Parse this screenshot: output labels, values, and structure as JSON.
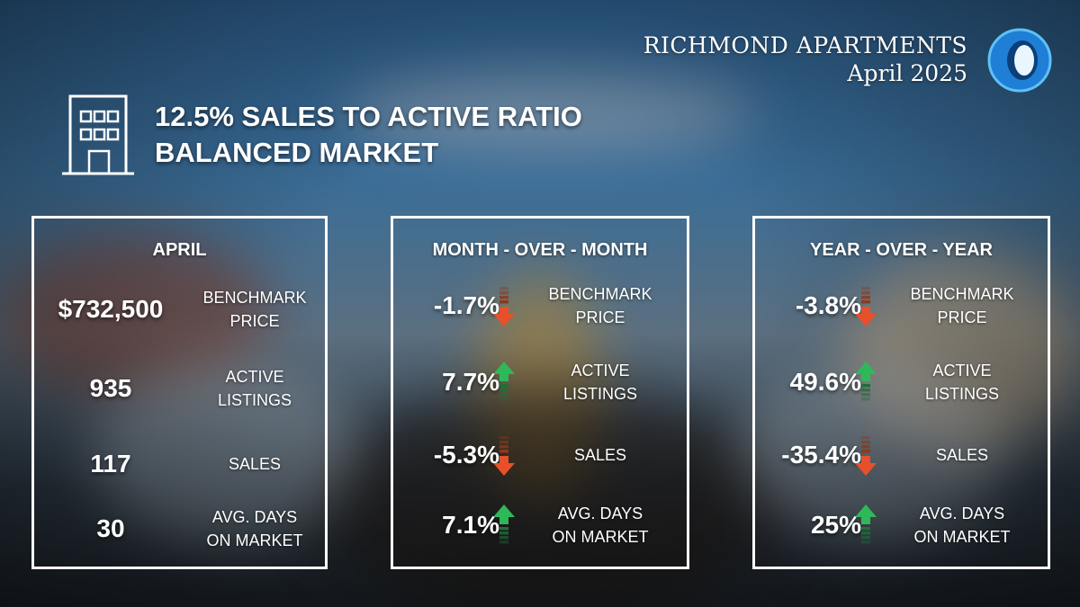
{
  "brand": {
    "title": "RICHMOND APARTMENTS",
    "date": "April 2025"
  },
  "headline": {
    "line1": "12.5% SALES TO ACTIVE RATIO",
    "line2": "BALANCED MARKET"
  },
  "colors": {
    "up": "#2fb85a",
    "down": "#e8502a",
    "border": "#ffffff"
  },
  "panels": {
    "april": {
      "title": "APRIL",
      "rows": [
        {
          "value": "$732,500",
          "label1": "BENCHMARK",
          "label2": "PRICE"
        },
        {
          "value": "935",
          "label1": "ACTIVE",
          "label2": "LISTINGS"
        },
        {
          "value": "117",
          "label1": "SALES",
          "label2": ""
        },
        {
          "value": "30",
          "label1": "AVG. DAYS",
          "label2": "ON MARKET"
        }
      ]
    },
    "mom": {
      "title": "MONTH - OVER - MONTH",
      "rows": [
        {
          "value": "-1.7%",
          "direction": "down",
          "label1": "BENCHMARK",
          "label2": "PRICE"
        },
        {
          "value": "7.7%",
          "direction": "up",
          "label1": "ACTIVE",
          "label2": "LISTINGS"
        },
        {
          "value": "-5.3%",
          "direction": "down",
          "label1": "SALES",
          "label2": ""
        },
        {
          "value": "7.1%",
          "direction": "up",
          "label1": "AVG. DAYS",
          "label2": "ON MARKET"
        }
      ]
    },
    "yoy": {
      "title": "YEAR - OVER - YEAR",
      "rows": [
        {
          "value": "-3.8%",
          "direction": "down",
          "label1": "BENCHMARK",
          "label2": "PRICE"
        },
        {
          "value": "49.6%",
          "direction": "up",
          "label1": "ACTIVE",
          "label2": "LISTINGS"
        },
        {
          "value": "-35.4%",
          "direction": "down",
          "label1": "SALES",
          "label2": ""
        },
        {
          "value": "25%",
          "direction": "up",
          "label1": "AVG. DAYS",
          "label2": "ON MARKET"
        }
      ]
    }
  }
}
